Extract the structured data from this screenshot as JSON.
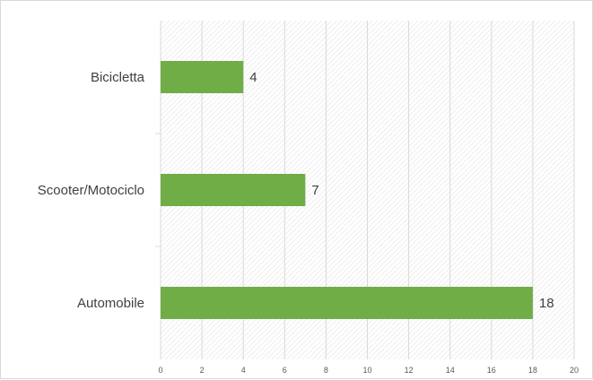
{
  "chart_data": {
    "type": "bar",
    "orientation": "horizontal",
    "categories": [
      "Bicicletta",
      "Scooter/Motociclo",
      "Automobile"
    ],
    "values": [
      4,
      7,
      18
    ],
    "xlim": [
      0,
      20
    ],
    "x_ticks": [
      0,
      2,
      4,
      6,
      8,
      10,
      12,
      14,
      16,
      18,
      20
    ],
    "grid": true,
    "data_labels": true,
    "colors": {
      "bar": "#70ad47",
      "grid": "#d9d9d9",
      "plot_hatch": "#e6e6e6"
    }
  }
}
